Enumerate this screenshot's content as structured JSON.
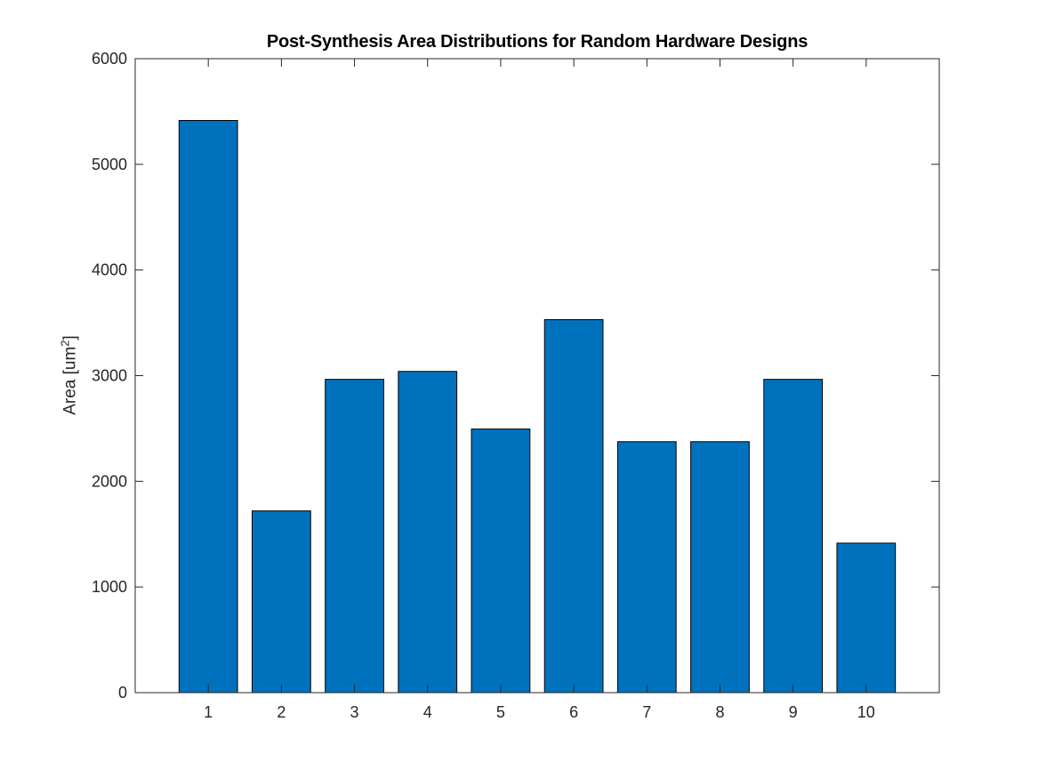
{
  "chart_data": {
    "type": "bar",
    "title": "Post-Synthesis Area Distributions for Random Hardware Designs",
    "ylabel": "Area [um",
    "ylabel_superscript": "2",
    "ylabel_suffix": "]",
    "xlabel": "",
    "categories": [
      "1",
      "2",
      "3",
      "4",
      "5",
      "6",
      "7",
      "8",
      "9",
      "10"
    ],
    "values": [
      5415,
      1720,
      2965,
      3040,
      2495,
      3530,
      2375,
      2375,
      2965,
      1415
    ],
    "ylim": [
      0,
      6000
    ],
    "yticks": [
      0,
      1000,
      2000,
      3000,
      4000,
      5000,
      6000
    ],
    "xlim": [
      0,
      11
    ],
    "grid": false,
    "legend": "none",
    "bar_color": "#0072BD",
    "bar_edge_color": "#000000"
  }
}
